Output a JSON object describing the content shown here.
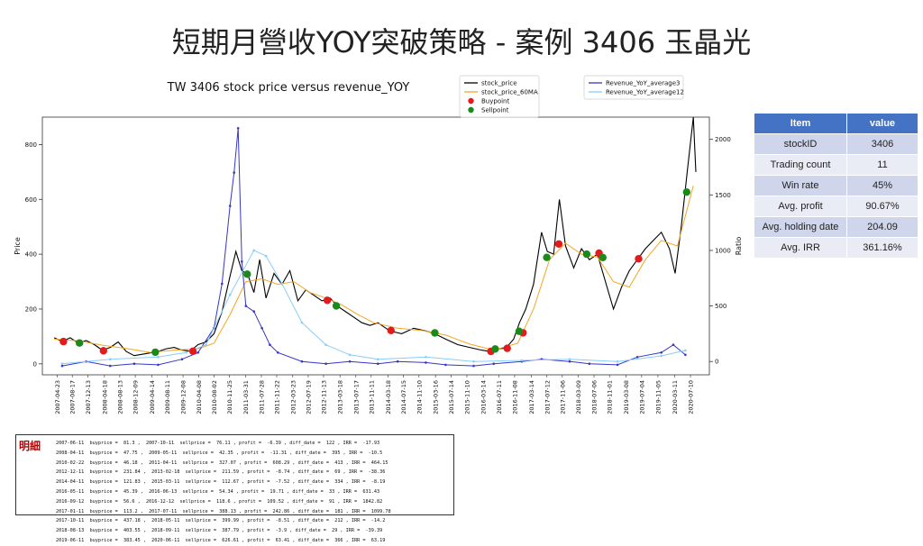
{
  "slide_title": "短期月營收YOY突破策略 - 案例 3406 玉晶光",
  "table": {
    "headers": [
      "Item",
      "value"
    ],
    "rows": [
      [
        "stockID",
        "3406"
      ],
      [
        "Trading count",
        "11"
      ],
      [
        "Win rate",
        "45%"
      ],
      [
        "Avg. profit",
        "90.67%"
      ],
      [
        "Avg. holding date",
        "204.09"
      ],
      [
        "Avg. IRR",
        "361.16%"
      ]
    ]
  },
  "detail": {
    "label": "明細",
    "lines": [
      "2007-06-11  buyprice =  81.3 ,  2007-10-11  sellprice =  76.11 , profit =  -6.39 , diff_date =  122 , IRR =  -17.93",
      "2008-04-11  buyprice =  47.75 ,  2009-05-11  sellprice =  42.35 , profit =  -11.31 , diff_date =  395 , IRR =  -10.5",
      "2010-02-22  buyprice =  46.18 ,  2011-04-11  sellprice =  327.07 , profit =  608.29 , diff_date =  413 , IRR =  464.15",
      "2012-12-11  buyprice =  231.84 ,  2013-02-18  sellprice =  211.59 , profit =  -8.74 , diff_date =  69 , IRR =  -38.36",
      "2014-04-11  buyprice =  121.83 ,  2015-03-11  sellprice =  112.67 , profit =  -7.52 , diff_date =  334 , IRR =  -8.19",
      "2016-05-11  buyprice =  45.39 ,  2016-06-13  sellprice =  54.34 , profit =  19.71 , diff_date =  33 , IRR =  631.43",
      "2016-09-12  buyprice =  56.6 ,  2016-12-12  sellprice =  118.6 , profit =  109.52 , diff_date =  91 , IRR =  1842.82",
      "2017-01-11  buyprice =  113.2 ,  2017-07-11  sellprice =  388.13 , profit =  242.86 , diff_date =  181 , IRR =  1099.78",
      "2017-10-11  buyprice =  437.18 ,  2018-05-11  sellprice =  399.99 , profit =  -8.51 , diff_date =  212 , IRR =  -14.2",
      "2018-08-13  buyprice =  403.55 ,  2018-09-11  sellprice =  387.79 , profit =  -3.9 , diff_date =  29 , IRR =  -39.39",
      "2019-06-11  buyprice =  383.45 ,  2020-06-11  sellprice =  626.61 , profit =  63.41 , diff_date =  366 , IRR =  63.19"
    ]
  },
  "chart_data": {
    "type": "line",
    "title": "TW 3406 stock price versus revenue_YOY",
    "ylabel": "Price",
    "y2label": "Ratio",
    "ylim": [
      -40,
      900
    ],
    "y2lim": [
      -120,
      2200
    ],
    "yticks": [
      0,
      200,
      400,
      600,
      800
    ],
    "y2ticks": [
      0,
      500,
      1000,
      1500,
      2000
    ],
    "xlim": [
      "2007-01-01",
      "2020-12-01"
    ],
    "xtick_labels": [
      "2007-04-23",
      "2007-08-17",
      "2007-12-13",
      "2008-04-18",
      "2008-08-13",
      "2008-12-09",
      "2009-04-14",
      "2009-08-11",
      "2009-12-08",
      "2010-04-08",
      "2010-08-02",
      "2010-11-25",
      "2011-03-31",
      "2011-07-28",
      "2011-11-22",
      "2012-03-23",
      "2012-07-19",
      "2012-11-13",
      "2013-03-18",
      "2013-07-17",
      "2013-11-11",
      "2014-03-18",
      "2014-07-15",
      "2014-11-10",
      "2015-03-16",
      "2015-07-14",
      "2015-11-10",
      "2016-03-14",
      "2016-07-11",
      "2016-11-08",
      "2017-03-14",
      "2017-07-12",
      "2017-11-06",
      "2018-03-09",
      "2018-07-06",
      "2018-11-01",
      "2019-03-08",
      "2019-07-04",
      "2019-11-05",
      "2020-03-11",
      "2020-07-10"
    ],
    "grid": false,
    "legend": {
      "left": [
        {
          "name": "stock_price",
          "color": "#000000",
          "kind": "line"
        },
        {
          "name": "stock_price_60MA",
          "color": "#f5a623",
          "kind": "line"
        },
        {
          "name": "Buypoint",
          "color": "#e41a1c",
          "kind": "marker"
        },
        {
          "name": "Sellpoint",
          "color": "#1a8a1a",
          "kind": "marker"
        }
      ],
      "right": [
        {
          "name": "Revenue_YoY_average3",
          "color": "#3636c8",
          "kind": "line"
        },
        {
          "name": "Revenue_YoY_average12",
          "color": "#87cefa",
          "kind": "line"
        }
      ]
    },
    "series": [
      {
        "name": "stock_price",
        "axis": "left",
        "color": "#000000",
        "points": [
          [
            "2007-04-01",
            95
          ],
          [
            "2007-06-01",
            82
          ],
          [
            "2007-08-01",
            95
          ],
          [
            "2007-10-01",
            76
          ],
          [
            "2007-12-01",
            85
          ],
          [
            "2008-02-01",
            70
          ],
          [
            "2008-04-01",
            50
          ],
          [
            "2008-06-01",
            60
          ],
          [
            "2008-08-01",
            80
          ],
          [
            "2008-10-01",
            45
          ],
          [
            "2008-12-01",
            30
          ],
          [
            "2009-02-01",
            35
          ],
          [
            "2009-04-01",
            40
          ],
          [
            "2009-06-01",
            45
          ],
          [
            "2009-08-01",
            55
          ],
          [
            "2009-10-01",
            60
          ],
          [
            "2009-12-01",
            50
          ],
          [
            "2010-02-01",
            46
          ],
          [
            "2010-04-01",
            70
          ],
          [
            "2010-06-01",
            80
          ],
          [
            "2010-08-01",
            110
          ],
          [
            "2010-10-01",
            190
          ],
          [
            "2010-12-01",
            320
          ],
          [
            "2011-01-15",
            410
          ],
          [
            "2011-03-01",
            340
          ],
          [
            "2011-04-15",
            327
          ],
          [
            "2011-06-01",
            260
          ],
          [
            "2011-07-15",
            380
          ],
          [
            "2011-09-01",
            240
          ],
          [
            "2011-11-01",
            330
          ],
          [
            "2012-01-01",
            290
          ],
          [
            "2012-03-01",
            340
          ],
          [
            "2012-05-01",
            230
          ],
          [
            "2012-07-01",
            270
          ],
          [
            "2012-09-01",
            250
          ],
          [
            "2012-11-01",
            230
          ],
          [
            "2013-01-01",
            240
          ],
          [
            "2013-03-01",
            210
          ],
          [
            "2013-05-01",
            190
          ],
          [
            "2013-07-01",
            170
          ],
          [
            "2013-09-01",
            150
          ],
          [
            "2013-11-01",
            140
          ],
          [
            "2014-01-01",
            150
          ],
          [
            "2014-04-01",
            120
          ],
          [
            "2014-07-01",
            110
          ],
          [
            "2014-10-01",
            130
          ],
          [
            "2015-01-01",
            120
          ],
          [
            "2015-03-01",
            112
          ],
          [
            "2015-06-01",
            90
          ],
          [
            "2015-09-01",
            70
          ],
          [
            "2015-12-01",
            60
          ],
          [
            "2016-03-01",
            50
          ],
          [
            "2016-05-01",
            45
          ],
          [
            "2016-07-01",
            55
          ],
          [
            "2016-09-01",
            57
          ],
          [
            "2016-11-01",
            90
          ],
          [
            "2016-12-15",
            150
          ],
          [
            "2017-02-01",
            200
          ],
          [
            "2017-04-01",
            290
          ],
          [
            "2017-06-01",
            480
          ],
          [
            "2017-07-15",
            410
          ],
          [
            "2017-09-01",
            400
          ],
          [
            "2017-10-15",
            600
          ],
          [
            "2017-12-01",
            430
          ],
          [
            "2018-02-01",
            350
          ],
          [
            "2018-04-01",
            420
          ],
          [
            "2018-06-01",
            380
          ],
          [
            "2018-08-01",
            400
          ],
          [
            "2018-10-01",
            300
          ],
          [
            "2018-12-01",
            200
          ],
          [
            "2019-02-01",
            280
          ],
          [
            "2019-04-01",
            340
          ],
          [
            "2019-06-01",
            380
          ],
          [
            "2019-08-01",
            420
          ],
          [
            "2019-10-01",
            450
          ],
          [
            "2019-12-01",
            480
          ],
          [
            "2020-02-01",
            420
          ],
          [
            "2020-03-15",
            330
          ],
          [
            "2020-05-01",
            500
          ],
          [
            "2020-06-15",
            700
          ],
          [
            "2020-08-01",
            900
          ],
          [
            "2020-08-20",
            700
          ]
        ]
      },
      {
        "name": "stock_price_60MA",
        "axis": "left",
        "color": "#f5a623",
        "points": [
          [
            "2007-04-01",
            90
          ],
          [
            "2007-10-01",
            84
          ],
          [
            "2008-04-01",
            68
          ],
          [
            "2008-10-01",
            56
          ],
          [
            "2009-04-01",
            42
          ],
          [
            "2009-10-01",
            50
          ],
          [
            "2010-04-01",
            55
          ],
          [
            "2010-08-01",
            75
          ],
          [
            "2010-12-01",
            180
          ],
          [
            "2011-04-01",
            300
          ],
          [
            "2011-08-01",
            310
          ],
          [
            "2011-12-01",
            290
          ],
          [
            "2012-04-01",
            300
          ],
          [
            "2012-08-01",
            260
          ],
          [
            "2012-12-01",
            240
          ],
          [
            "2013-04-01",
            215
          ],
          [
            "2013-08-01",
            180
          ],
          [
            "2013-12-01",
            150
          ],
          [
            "2014-06-01",
            130
          ],
          [
            "2014-12-01",
            122
          ],
          [
            "2015-06-01",
            105
          ],
          [
            "2015-12-01",
            72
          ],
          [
            "2016-06-01",
            50
          ],
          [
            "2016-12-01",
            75
          ],
          [
            "2017-04-01",
            200
          ],
          [
            "2017-08-01",
            380
          ],
          [
            "2017-12-01",
            440
          ],
          [
            "2018-04-01",
            400
          ],
          [
            "2018-08-01",
            390
          ],
          [
            "2018-12-01",
            300
          ],
          [
            "2019-04-01",
            280
          ],
          [
            "2019-08-01",
            380
          ],
          [
            "2019-12-01",
            450
          ],
          [
            "2020-04-01",
            430
          ],
          [
            "2020-08-01",
            650
          ]
        ]
      },
      {
        "name": "Revenue_YoY_average3",
        "axis": "right",
        "color": "#3636c8",
        "points": [
          [
            "2007-06-01",
            -40
          ],
          [
            "2007-12-01",
            0
          ],
          [
            "2008-06-01",
            -40
          ],
          [
            "2008-12-01",
            -20
          ],
          [
            "2009-06-01",
            -30
          ],
          [
            "2009-12-01",
            20
          ],
          [
            "2010-04-01",
            80
          ],
          [
            "2010-08-01",
            300
          ],
          [
            "2010-10-01",
            700
          ],
          [
            "2010-12-01",
            1400
          ],
          [
            "2011-01-01",
            1700
          ],
          [
            "2011-02-01",
            2100
          ],
          [
            "2011-03-01",
            900
          ],
          [
            "2011-04-01",
            500
          ],
          [
            "2011-06-01",
            450
          ],
          [
            "2011-08-01",
            300
          ],
          [
            "2011-10-01",
            150
          ],
          [
            "2011-12-01",
            80
          ],
          [
            "2012-06-01",
            0
          ],
          [
            "2012-12-01",
            -20
          ],
          [
            "2013-06-01",
            0
          ],
          [
            "2014-01-01",
            -20
          ],
          [
            "2014-06-01",
            0
          ],
          [
            "2015-01-01",
            -10
          ],
          [
            "2015-06-01",
            -30
          ],
          [
            "2016-01-01",
            -40
          ],
          [
            "2016-06-01",
            -20
          ],
          [
            "2017-01-01",
            0
          ],
          [
            "2017-06-01",
            20
          ],
          [
            "2018-01-01",
            0
          ],
          [
            "2018-06-01",
            -20
          ],
          [
            "2019-01-01",
            -30
          ],
          [
            "2019-06-01",
            40
          ],
          [
            "2019-12-01",
            80
          ],
          [
            "2020-03-01",
            150
          ],
          [
            "2020-06-01",
            60
          ]
        ]
      },
      {
        "name": "Revenue_YoY_average12",
        "axis": "right",
        "color": "#87cefa",
        "points": [
          [
            "2007-06-01",
            -20
          ],
          [
            "2008-06-01",
            20
          ],
          [
            "2009-06-01",
            40
          ],
          [
            "2010-01-01",
            80
          ],
          [
            "2010-06-01",
            150
          ],
          [
            "2010-12-01",
            600
          ],
          [
            "2011-06-01",
            1000
          ],
          [
            "2011-09-01",
            950
          ],
          [
            "2012-01-01",
            700
          ],
          [
            "2012-06-01",
            350
          ],
          [
            "2012-12-01",
            150
          ],
          [
            "2013-06-01",
            60
          ],
          [
            "2014-01-01",
            20
          ],
          [
            "2015-01-01",
            40
          ],
          [
            "2016-01-01",
            0
          ],
          [
            "2017-01-01",
            10
          ],
          [
            "2018-01-01",
            20
          ],
          [
            "2019-01-01",
            0
          ],
          [
            "2019-12-01",
            50
          ],
          [
            "2020-06-01",
            100
          ]
        ]
      }
    ],
    "buy_points": [
      [
        "2007-06-11",
        81.3
      ],
      [
        "2008-04-11",
        47.75
      ],
      [
        "2010-02-22",
        46.18
      ],
      [
        "2012-12-11",
        231.84
      ],
      [
        "2014-04-11",
        121.83
      ],
      [
        "2016-05-11",
        45.39
      ],
      [
        "2016-09-12",
        56.6
      ],
      [
        "2017-01-11",
        113.2
      ],
      [
        "2017-10-11",
        437.18
      ],
      [
        "2018-08-13",
        403.55
      ],
      [
        "2019-06-11",
        383.45
      ]
    ],
    "sell_points": [
      [
        "2007-10-11",
        76.11
      ],
      [
        "2009-05-11",
        42.35
      ],
      [
        "2011-04-11",
        327.07
      ],
      [
        "2013-02-18",
        211.59
      ],
      [
        "2015-03-11",
        112.67
      ],
      [
        "2016-06-13",
        54.34
      ],
      [
        "2016-12-12",
        118.6
      ],
      [
        "2017-07-11",
        388.13
      ],
      [
        "2018-05-11",
        399.99
      ],
      [
        "2018-09-11",
        387.79
      ],
      [
        "2020-06-11",
        626.61
      ]
    ]
  }
}
